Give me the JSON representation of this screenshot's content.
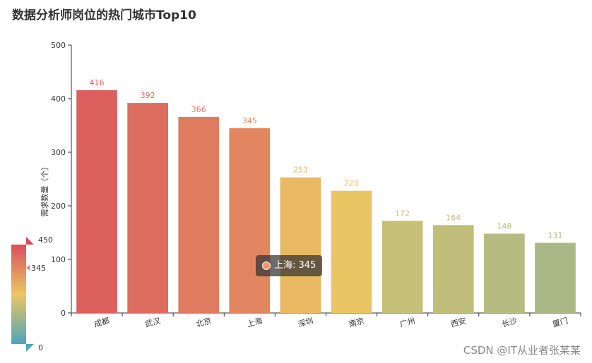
{
  "chart_data": {
    "type": "bar",
    "title": "数据分析师岗位的热门城市Top10",
    "ylabel": "需求数量（个）",
    "xlabel": "",
    "categories": [
      "成都",
      "武汉",
      "北京",
      "上海",
      "深圳",
      "南京",
      "广州",
      "西安",
      "长沙",
      "厦门"
    ],
    "values": [
      416,
      392,
      366,
      345,
      253,
      228,
      172,
      164,
      148,
      131
    ],
    "ylim": [
      0,
      500
    ],
    "yticks": [
      0,
      100,
      200,
      300,
      400,
      500
    ],
    "grid": false,
    "data_labels": true,
    "visual_map": {
      "min": 0,
      "max": 450,
      "min_label": "0",
      "max_label": "450",
      "current_label": "345",
      "current_value": 345,
      "colors": [
        "#50a3ba",
        "#eac763",
        "#d94e5d"
      ]
    }
  },
  "tooltip": {
    "text": "上海: 345",
    "color": "#f4956b"
  },
  "watermark": "CSDN @IT从业者张某某"
}
